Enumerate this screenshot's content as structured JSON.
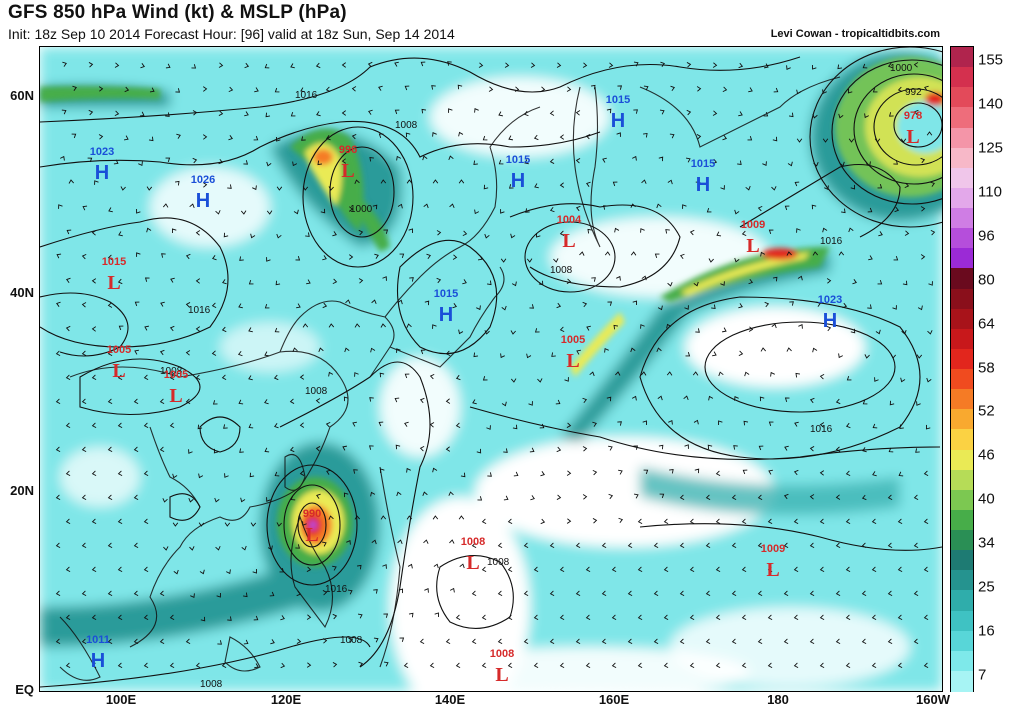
{
  "header": {
    "title": "GFS 850 hPa Wind (kt) & MSLP (hPa)",
    "subtitle": "Init: 18z Sep 10 2014   Forecast Hour: [96]   valid at 18z Sun, Sep 14 2014",
    "credit": "Levi Cowan - tropicaltidbits.com"
  },
  "axes": {
    "lat_labels": [
      "60N",
      "40N",
      "20N",
      "EQ"
    ],
    "lon_labels": [
      "100E",
      "120E",
      "140E",
      "160E",
      "180",
      "160W"
    ]
  },
  "colorbar": {
    "labels": [
      "155",
      "140",
      "125",
      "110",
      "96",
      "80",
      "64",
      "58",
      "52",
      "46",
      "40",
      "34",
      "25",
      "16",
      "7"
    ],
    "colors": [
      "#b0244d",
      "#d4304e",
      "#e34a5a",
      "#ee6d7b",
      "#f495a8",
      "#f7b8c8",
      "#f0c6ea",
      "#e3a8ea",
      "#cf7de4",
      "#b54edb",
      "#9b2ad6",
      "#6a0a1e",
      "#8a0f1b",
      "#a8131a",
      "#c8181b",
      "#e2261d",
      "#f04b1f",
      "#f57b25",
      "#f9a92f",
      "#fbd243",
      "#eaea55",
      "#b6dc57",
      "#7cc851",
      "#47ad49",
      "#2a8f55",
      "#1e7b73",
      "#25938f",
      "#2fadab",
      "#3fc2c3",
      "#58d6d8",
      "#7ee9ea",
      "#a7f4f4"
    ]
  },
  "map": {
    "low_centers": [
      {
        "label": "L",
        "value": "996"
      },
      {
        "label": "L",
        "value": "978"
      },
      {
        "label": "L",
        "value": "1004"
      },
      {
        "label": "L",
        "value": "1009"
      },
      {
        "label": "L",
        "value": "1015"
      },
      {
        "label": "L",
        "value": "1005"
      },
      {
        "label": "L",
        "value": "1005"
      },
      {
        "label": "L",
        "value": "1005"
      },
      {
        "label": "L",
        "value": "990"
      },
      {
        "label": "L",
        "value": "1008"
      },
      {
        "label": "L",
        "value": "1009"
      },
      {
        "label": "L",
        "value": "1008"
      }
    ],
    "high_centers": [
      {
        "label": "H",
        "value": "1023"
      },
      {
        "label": "H",
        "value": "1026"
      },
      {
        "label": "H",
        "value": "1015"
      },
      {
        "label": "H",
        "value": "1015"
      },
      {
        "label": "H",
        "value": "1015"
      },
      {
        "label": "H",
        "value": "1015"
      },
      {
        "label": "H",
        "value": "1023"
      },
      {
        "label": "H",
        "value": "1011"
      }
    ],
    "isobar_labels": [
      "1016",
      "1008",
      "1000",
      "1016",
      "1008",
      "1016",
      "1008",
      "1000",
      "992",
      "1016",
      "1008",
      "1008",
      "1016",
      "1008",
      "1008"
    ]
  },
  "colors": {
    "low": "#d62a2a",
    "high": "#1a4fd8",
    "isobar": "#111111"
  }
}
